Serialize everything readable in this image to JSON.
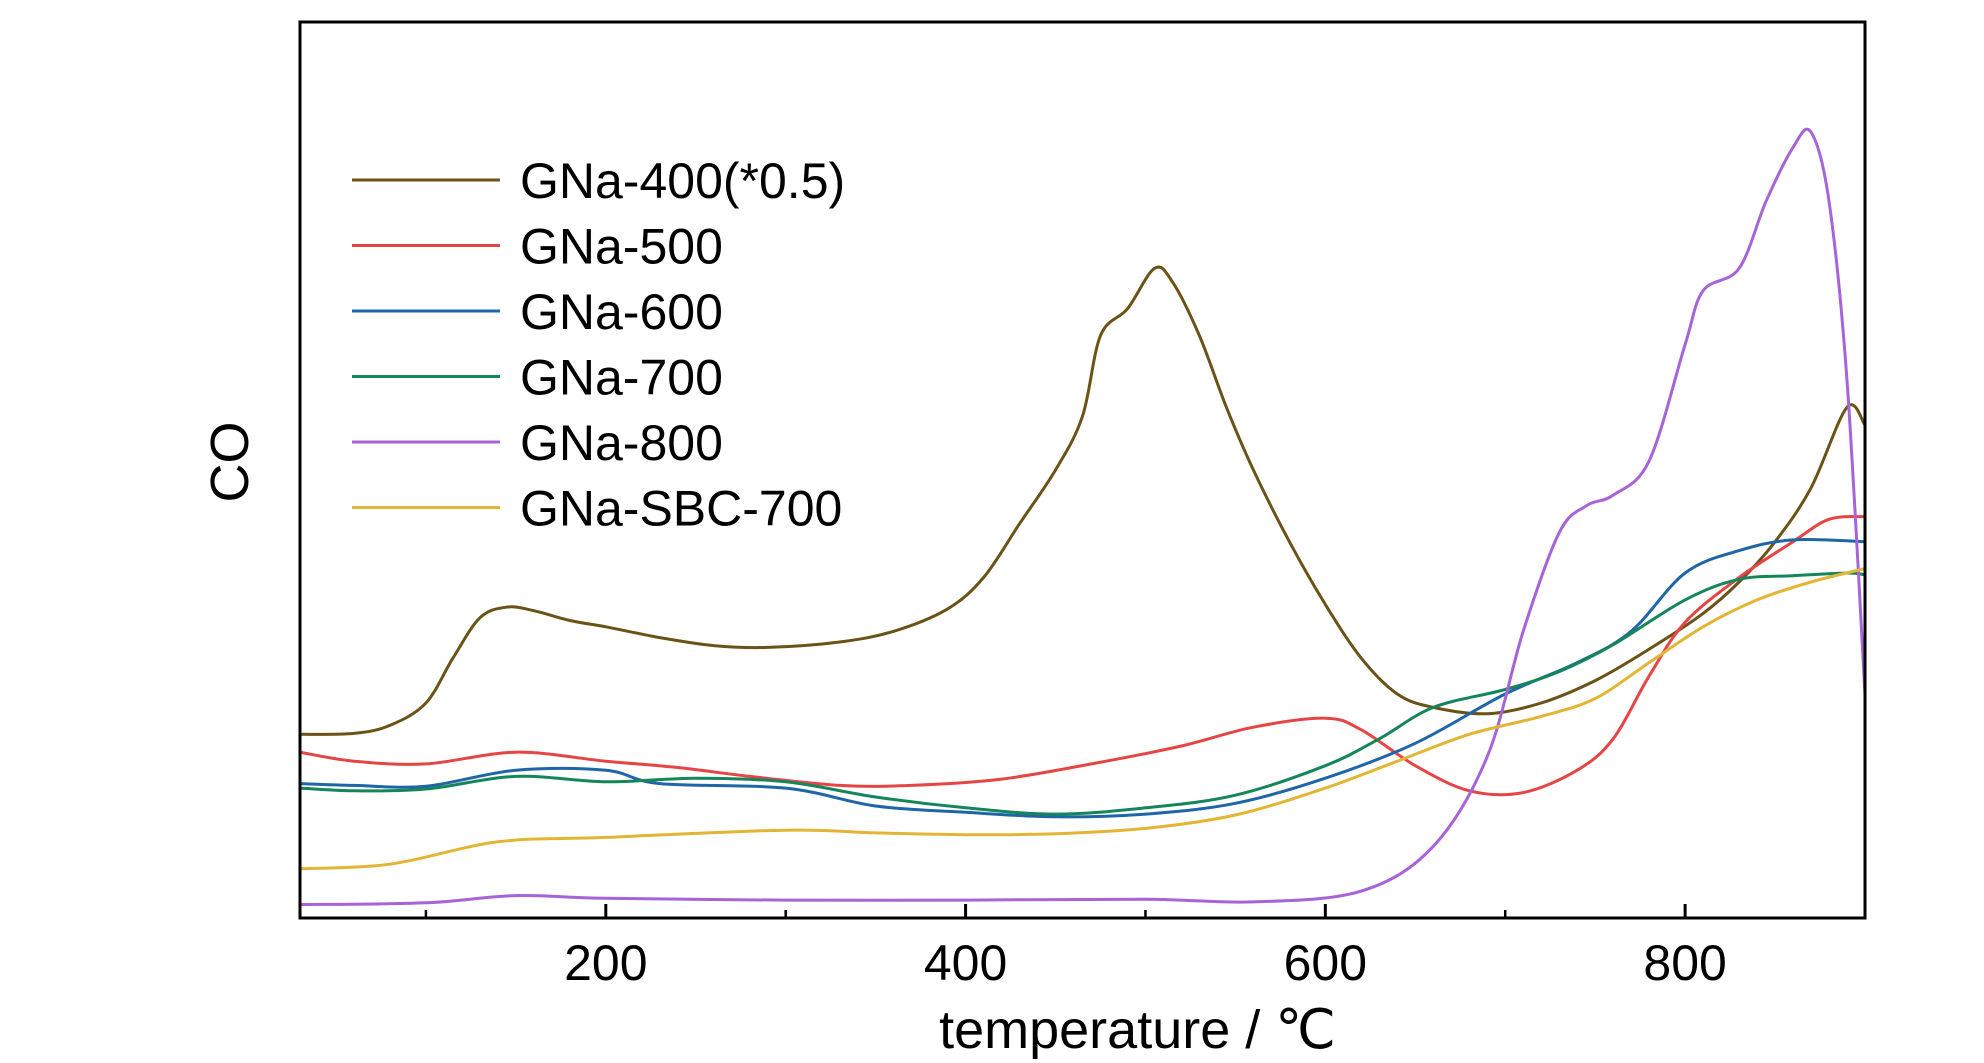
{
  "chart_data": {
    "type": "line",
    "xlabel": "temperature / ℃",
    "ylabel": "CO",
    "xlim": [
      30,
      900
    ],
    "ylim": [
      0,
      100
    ],
    "x_ticks": [
      200,
      400,
      600,
      800
    ],
    "x_minor_ticks": [
      100,
      300,
      500,
      700
    ],
    "y_ticks_shown": false,
    "grid": false,
    "legend_position": "upper-left",
    "series": [
      {
        "name": "GNa-400(*0.5)",
        "color": "#6b5318",
        "points": [
          [
            30,
            20.5
          ],
          [
            60,
            20.6
          ],
          [
            80,
            21.5
          ],
          [
            100,
            24
          ],
          [
            115,
            29
          ],
          [
            130,
            33.5
          ],
          [
            145,
            34.7
          ],
          [
            160,
            34.3
          ],
          [
            180,
            33.2
          ],
          [
            200,
            32.5
          ],
          [
            230,
            31.3
          ],
          [
            260,
            30.4
          ],
          [
            290,
            30.2
          ],
          [
            330,
            30.8
          ],
          [
            360,
            32
          ],
          [
            390,
            34.5
          ],
          [
            410,
            38
          ],
          [
            430,
            44
          ],
          [
            450,
            50
          ],
          [
            465,
            56
          ],
          [
            475,
            65
          ],
          [
            490,
            68
          ],
          [
            505,
            72.5
          ],
          [
            515,
            71
          ],
          [
            530,
            65
          ],
          [
            545,
            57
          ],
          [
            560,
            50
          ],
          [
            580,
            42
          ],
          [
            600,
            35
          ],
          [
            620,
            29
          ],
          [
            640,
            25
          ],
          [
            660,
            23.5
          ],
          [
            690,
            22.8
          ],
          [
            720,
            24
          ],
          [
            750,
            26.5
          ],
          [
            780,
            30
          ],
          [
            810,
            34
          ],
          [
            830,
            37.5
          ],
          [
            850,
            42
          ],
          [
            870,
            48
          ],
          [
            890,
            57
          ],
          [
            900,
            55
          ]
        ]
      },
      {
        "name": "GNa-500",
        "color": "#e64545",
        "points": [
          [
            30,
            18.5
          ],
          [
            60,
            17.5
          ],
          [
            100,
            17.2
          ],
          [
            150,
            18.5
          ],
          [
            200,
            17.5
          ],
          [
            240,
            16.8
          ],
          [
            280,
            15.8
          ],
          [
            330,
            14.8
          ],
          [
            370,
            14.8
          ],
          [
            420,
            15.5
          ],
          [
            470,
            17.2
          ],
          [
            520,
            19.2
          ],
          [
            560,
            21.3
          ],
          [
            600,
            22.3
          ],
          [
            620,
            21
          ],
          [
            650,
            17
          ],
          [
            680,
            14.2
          ],
          [
            710,
            14
          ],
          [
            740,
            16.5
          ],
          [
            760,
            20
          ],
          [
            780,
            27
          ],
          [
            800,
            33
          ],
          [
            830,
            38
          ],
          [
            860,
            42
          ],
          [
            880,
            44.5
          ],
          [
            900,
            44.8
          ]
        ]
      },
      {
        "name": "GNa-600",
        "color": "#1f66a8",
        "points": [
          [
            30,
            15
          ],
          [
            60,
            14.8
          ],
          [
            100,
            14.7
          ],
          [
            150,
            16.5
          ],
          [
            200,
            16.5
          ],
          [
            230,
            15
          ],
          [
            300,
            14.5
          ],
          [
            350,
            12.5
          ],
          [
            400,
            11.8
          ],
          [
            450,
            11.3
          ],
          [
            500,
            11.6
          ],
          [
            550,
            12.8
          ],
          [
            600,
            15.6
          ],
          [
            650,
            19.5
          ],
          [
            700,
            25
          ],
          [
            740,
            28.5
          ],
          [
            770,
            32
          ],
          [
            800,
            38.5
          ],
          [
            830,
            41
          ],
          [
            860,
            42.2
          ],
          [
            900,
            42
          ]
        ]
      },
      {
        "name": "GNa-700",
        "color": "#15855a",
        "points": [
          [
            30,
            14.5
          ],
          [
            60,
            14.2
          ],
          [
            100,
            14.4
          ],
          [
            150,
            15.8
          ],
          [
            200,
            15.2
          ],
          [
            250,
            15.6
          ],
          [
            300,
            15.2
          ],
          [
            350,
            13.5
          ],
          [
            400,
            12.3
          ],
          [
            450,
            11.6
          ],
          [
            500,
            12.3
          ],
          [
            550,
            13.7
          ],
          [
            600,
            17
          ],
          [
            630,
            20
          ],
          [
            660,
            23.5
          ],
          [
            700,
            25.5
          ],
          [
            730,
            27.5
          ],
          [
            760,
            30.5
          ],
          [
            800,
            35.5
          ],
          [
            830,
            37.8
          ],
          [
            860,
            38.2
          ],
          [
            890,
            38.5
          ],
          [
            900,
            38.3
          ]
        ]
      },
      {
        "name": "GNa-800",
        "color": "#a763d8",
        "points": [
          [
            30,
            1.5
          ],
          [
            100,
            1.7
          ],
          [
            150,
            2.5
          ],
          [
            200,
            2.2
          ],
          [
            300,
            2
          ],
          [
            400,
            2
          ],
          [
            500,
            2.1
          ],
          [
            560,
            1.8
          ],
          [
            620,
            3
          ],
          [
            660,
            8
          ],
          [
            690,
            18
          ],
          [
            710,
            32
          ],
          [
            730,
            43
          ],
          [
            745,
            46
          ],
          [
            760,
            47.2
          ],
          [
            780,
            51
          ],
          [
            800,
            64
          ],
          [
            810,
            70
          ],
          [
            830,
            72.5
          ],
          [
            845,
            80
          ],
          [
            860,
            86
          ],
          [
            870,
            87.7
          ],
          [
            880,
            80
          ],
          [
            890,
            60
          ],
          [
            900,
            25
          ]
        ]
      },
      {
        "name": "GNa-SBC-700",
        "color": "#e2b634",
        "points": [
          [
            30,
            5.5
          ],
          [
            80,
            6
          ],
          [
            140,
            8.5
          ],
          [
            200,
            9
          ],
          [
            300,
            9.8
          ],
          [
            350,
            9.5
          ],
          [
            400,
            9.3
          ],
          [
            450,
            9.4
          ],
          [
            500,
            10
          ],
          [
            550,
            11.5
          ],
          [
            600,
            14.5
          ],
          [
            640,
            17.5
          ],
          [
            680,
            20.5
          ],
          [
            720,
            22.5
          ],
          [
            750,
            24.5
          ],
          [
            780,
            28.5
          ],
          [
            810,
            32.5
          ],
          [
            840,
            35.5
          ],
          [
            870,
            37.5
          ],
          [
            900,
            39
          ]
        ]
      }
    ]
  }
}
